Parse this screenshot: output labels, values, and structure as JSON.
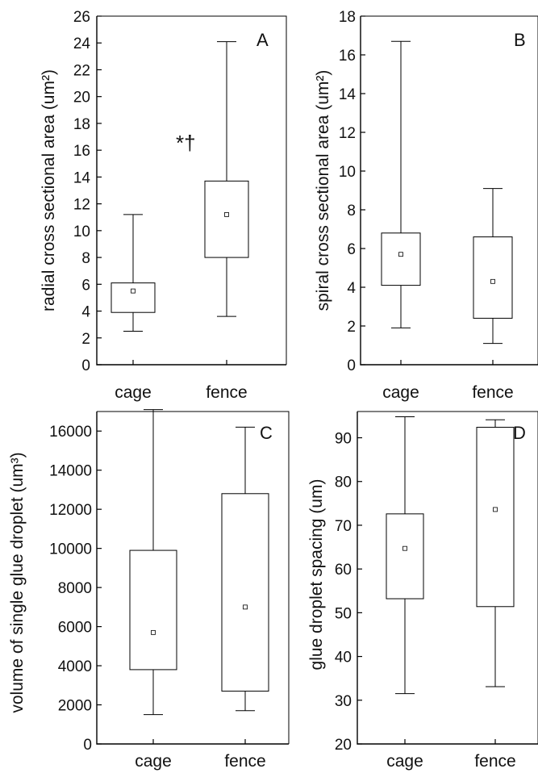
{
  "chart_data": [
    {
      "type": "box",
      "panel_label": "A",
      "ylabel": "radial cross sectional area (um²)",
      "ylim": [
        0,
        26
      ],
      "yticks": [
        "0",
        "2",
        "4",
        "6",
        "8",
        "10",
        "12",
        "14",
        "16",
        "18",
        "20",
        "22",
        "24",
        "26"
      ],
      "categories": [
        "cage",
        "fence"
      ],
      "boxes": [
        {
          "category": "cage",
          "min": 2.5,
          "q1": 3.9,
          "median": 5.5,
          "q3": 6.1,
          "max": 11.2
        },
        {
          "category": "fence",
          "min": 3.6,
          "q1": 8.0,
          "median": 11.2,
          "q3": 13.7,
          "max": 24.1
        }
      ],
      "annotation": "*†"
    },
    {
      "type": "box",
      "panel_label": "B",
      "ylabel": "spiral cross sectional area (um²)",
      "ylim": [
        0,
        18
      ],
      "yticks": [
        "0",
        "2",
        "4",
        "6",
        "8",
        "10",
        "12",
        "14",
        "16",
        "18"
      ],
      "categories": [
        "cage",
        "fence"
      ],
      "boxes": [
        {
          "category": "cage",
          "min": 1.9,
          "q1": 4.1,
          "median": 5.7,
          "q3": 6.8,
          "max": 16.7
        },
        {
          "category": "fence",
          "min": 1.1,
          "q1": 2.4,
          "median": 4.3,
          "q3": 6.6,
          "max": 9.1
        }
      ]
    },
    {
      "type": "box",
      "panel_label": "C",
      "ylabel": "volume of single glue droplet (um³)",
      "ylim": [
        0,
        17000
      ],
      "yticks": [
        "0",
        "2000",
        "4000",
        "6000",
        "8000",
        "10000",
        "12000",
        "14000",
        "16000"
      ],
      "categories": [
        "cage",
        "fence"
      ],
      "boxes": [
        {
          "category": "cage",
          "min": 1500,
          "q1": 3800,
          "median": 5700,
          "q3": 9900,
          "max": 17100
        },
        {
          "category": "fence",
          "min": 1700,
          "q1": 2700,
          "median": 7000,
          "q3": 12800,
          "max": 16200
        }
      ]
    },
    {
      "type": "box",
      "panel_label": "D",
      "ylabel": "glue droplet spacing (um)",
      "ylim": [
        20,
        96
      ],
      "yticks": [
        "20",
        "30",
        "40",
        "50",
        "60",
        "70",
        "80",
        "90"
      ],
      "categories": [
        "cage",
        "fence"
      ],
      "boxes": [
        {
          "category": "cage",
          "min": 31.5,
          "q1": 53.2,
          "median": 64.7,
          "q3": 72.6,
          "max": 94.8
        },
        {
          "category": "fence",
          "min": 33.1,
          "q1": 51.4,
          "median": 73.6,
          "q3": 92.4,
          "max": 94.1
        }
      ]
    }
  ]
}
